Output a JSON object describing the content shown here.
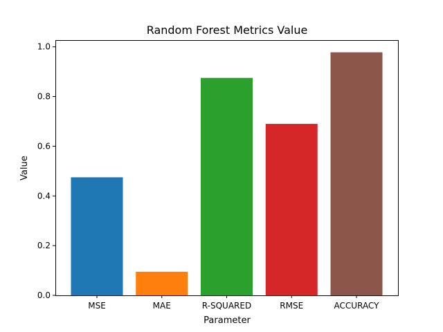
{
  "chart_data": {
    "type": "bar",
    "title": "Random Forest Metrics Value",
    "xlabel": "Parameter",
    "ylabel": "Value",
    "categories": [
      "MSE",
      "MAE",
      "R-SQUARED",
      "RMSE",
      "ACCURACY"
    ],
    "values": [
      0.475,
      0.095,
      0.875,
      0.69,
      0.978
    ],
    "colors": [
      "#1f77b4",
      "#ff7f0e",
      "#2ca02c",
      "#d62728",
      "#8c564b"
    ],
    "ylim": [
      0,
      1.027
    ],
    "yticks": [
      0.0,
      0.2,
      0.4,
      0.6,
      0.8,
      1.0
    ],
    "ytick_labels": [
      "0.0",
      "0.2",
      "0.4",
      "0.6",
      "0.8",
      "1.0"
    ],
    "grid": false,
    "legend": "none"
  }
}
